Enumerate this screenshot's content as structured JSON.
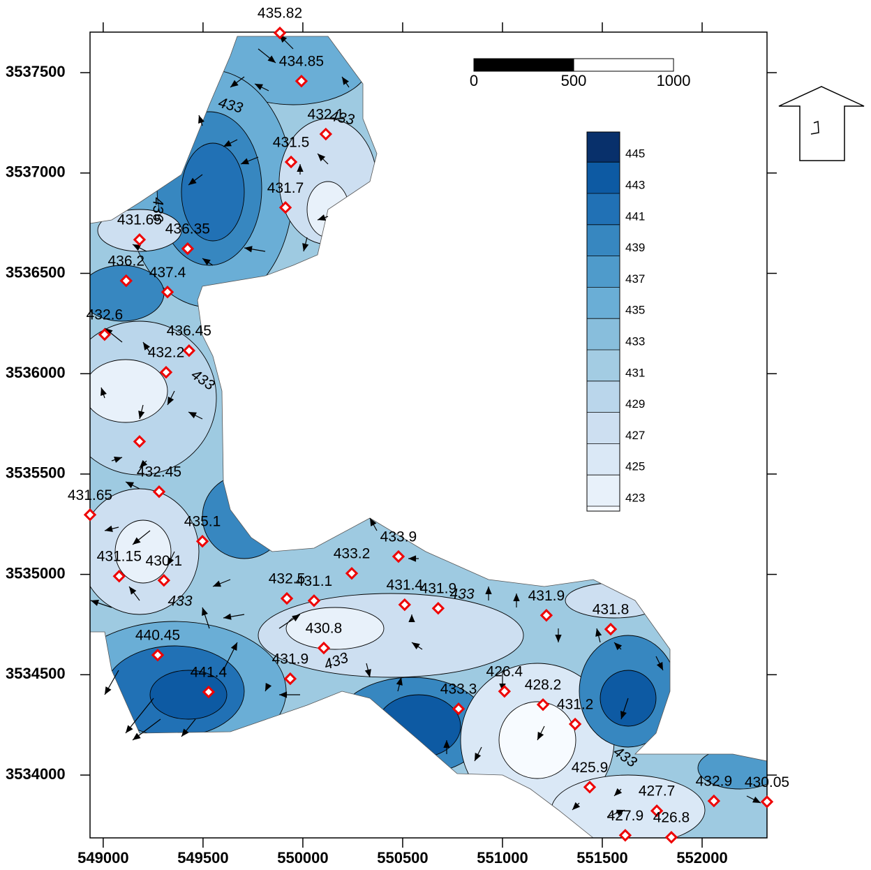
{
  "map": {
    "x_axis": {
      "lim": [
        548934,
        552325
      ],
      "ticks": [
        549000,
        549500,
        550000,
        550500,
        551000,
        551500,
        552000
      ]
    },
    "y_axis": {
      "lim": [
        3533687,
        3537702
      ],
      "ticks": [
        3534000,
        3534500,
        3535000,
        3535500,
        3536000,
        3536500,
        3537000,
        3537500
      ]
    },
    "wells": [
      {
        "label": "435.82",
        "x": 549885,
        "y": 3537698
      },
      {
        "label": "434.85",
        "x": 549993,
        "y": 3537458
      },
      {
        "label": "432.1",
        "x": 550115,
        "y": 3537194
      },
      {
        "label": "431.5",
        "x": 549941,
        "y": 3537055
      },
      {
        "label": "431.7",
        "x": 549913,
        "y": 3536828
      },
      {
        "label": "431.65",
        "x": 549182,
        "y": 3536668
      },
      {
        "label": "436.35",
        "x": 549423,
        "y": 3536623
      },
      {
        "label": "436.2",
        "x": 549115,
        "y": 3536463
      },
      {
        "label": "437.4",
        "x": 549322,
        "y": 3536407
      },
      {
        "label": "432.6",
        "x": 549007,
        "y": 3536195
      },
      {
        "label": "436.45",
        "x": 549430,
        "y": 3536115
      },
      {
        "label": "432.2",
        "x": 549315,
        "y": 3536007
      },
      {
        "x": 549182,
        "y": 3535662
      },
      {
        "label": "432.45",
        "x": 549280,
        "y": 3535412
      },
      {
        "label": "431.65",
        "x": 548934,
        "y": 3535297
      },
      {
        "label": "435.1",
        "x": 549497,
        "y": 3535165
      },
      {
        "label": "431.15",
        "x": 549080,
        "y": 3534991
      },
      {
        "label": "430.1",
        "x": 549304,
        "y": 3534970
      },
      {
        "label": "440.45",
        "x": 549273,
        "y": 3534598
      },
      {
        "label": "441.4",
        "x": 549528,
        "y": 3534414
      },
      {
        "label": "432.5",
        "x": 549920,
        "y": 3534880
      },
      {
        "label": "431.1",
        "x": 550056,
        "y": 3534869
      },
      {
        "label": "430.8",
        "x": 550105,
        "y": 3534633
      },
      {
        "label": "431.9",
        "x": 549937,
        "y": 3534480
      },
      {
        "label": "433.2",
        "x": 550245,
        "y": 3535005
      },
      {
        "label": "433.9",
        "x": 550479,
        "y": 3535089
      },
      {
        "label": "431.4",
        "x": 550510,
        "y": 3534849
      },
      {
        "label": "431.9",
        "x": 550678,
        "y": 3534831
      },
      {
        "label": "431.9",
        "x": 551220,
        "y": 3534796
      },
      {
        "label": "431.8",
        "x": 551542,
        "y": 3534727
      },
      {
        "label": "433.3",
        "x": 550780,
        "y": 3534330
      },
      {
        "label": "426.4",
        "x": 551010,
        "y": 3534417
      },
      {
        "label": "428.2",
        "x": 551203,
        "y": 3534351
      },
      {
        "label": "431.2",
        "x": 551364,
        "y": 3534254
      },
      {
        "label": "425.9",
        "x": 551437,
        "y": 3533940
      },
      {
        "label": "427.7",
        "x": 551773,
        "y": 3533822
      },
      {
        "label": "427.9",
        "x": 551615,
        "y": 3533700
      },
      {
        "label": "426.8",
        "x": 551846,
        "y": 3533690
      },
      {
        "label": "432.9",
        "x": 552059,
        "y": 3533871
      },
      {
        "label": "430.05",
        "x": 552325,
        "y": 3533867
      }
    ],
    "contour_labels": [
      "433",
      "433",
      "433",
      "433",
      "433",
      "433",
      "433",
      "436"
    ],
    "colorbar": {
      "levels": [
        423,
        425,
        427,
        429,
        431,
        433,
        435,
        437,
        439,
        441,
        443,
        445
      ],
      "colors": [
        "#f7fbff",
        "#e8f1fa",
        "#dae8f6",
        "#cddff1",
        "#bad6eb",
        "#a3cce3",
        "#88bedc",
        "#6aaed6",
        "#4f9bcb",
        "#3787c0",
        "#2171b5",
        "#0d5aa3",
        "#08306b"
      ]
    },
    "scale_bar": {
      "ticks": [
        0,
        500,
        1000
      ]
    }
  }
}
